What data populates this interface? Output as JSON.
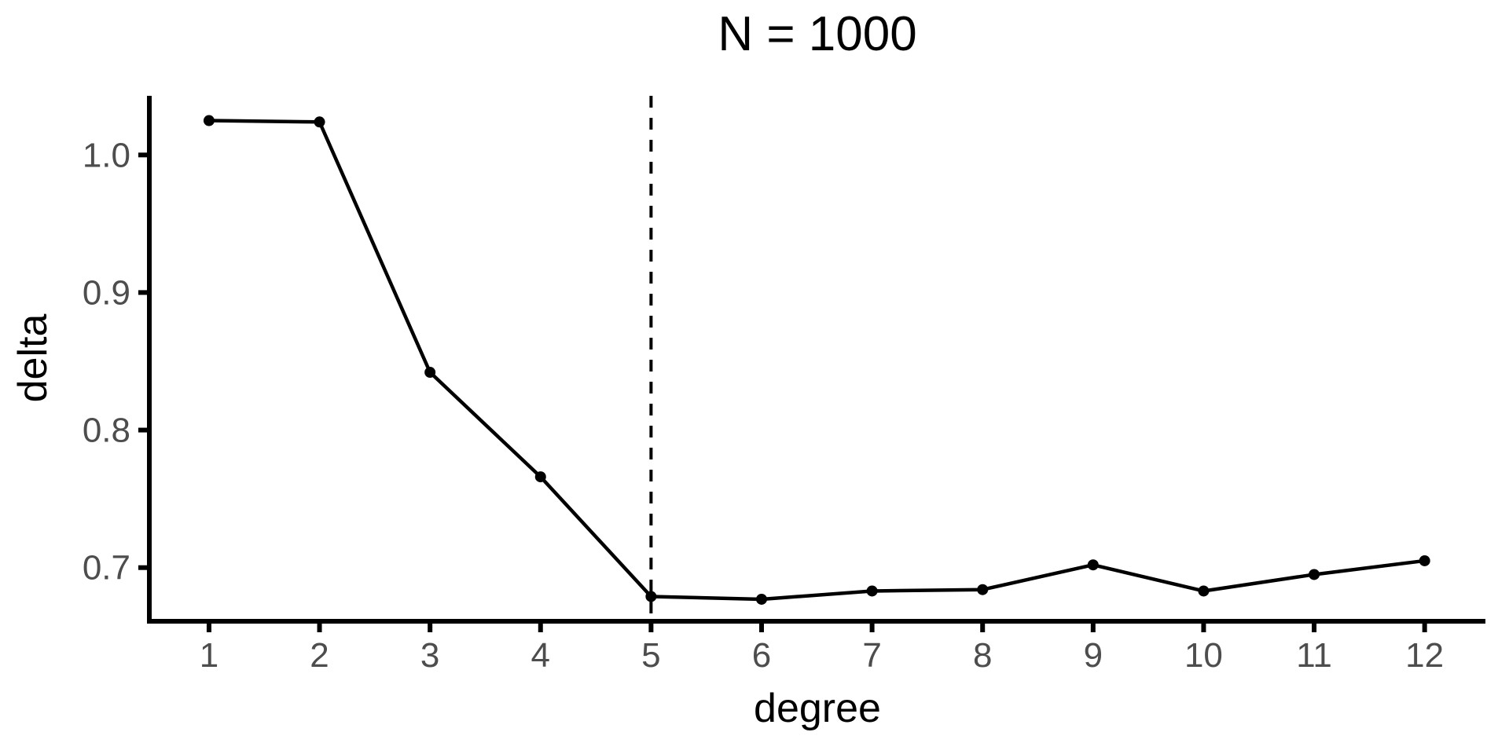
{
  "chart_data": {
    "type": "line",
    "title": "N = 1000",
    "xlabel": "degree",
    "ylabel": "delta",
    "x": [
      1,
      2,
      3,
      4,
      5,
      6,
      7,
      8,
      9,
      10,
      11,
      12
    ],
    "series": [
      {
        "name": "delta",
        "values": [
          1.025,
          1.024,
          0.842,
          0.766,
          0.679,
          0.677,
          0.683,
          0.684,
          0.702,
          0.683,
          0.695,
          0.705
        ]
      }
    ],
    "x_ticks": [
      1,
      2,
      3,
      4,
      5,
      6,
      7,
      8,
      9,
      10,
      11,
      12
    ],
    "y_ticks": [
      0.7,
      0.8,
      0.9,
      1.0
    ],
    "y_tick_labels": [
      "0.7",
      "0.8",
      "0.9",
      "1.0"
    ],
    "xlim": [
      0.46,
      12.55
    ],
    "ylim": [
      0.661,
      1.043
    ],
    "vline": {
      "x": 5,
      "style": "dashed"
    },
    "grid": false,
    "legend": false,
    "colors": {
      "line": "#000000",
      "point": "#000000",
      "axis": "#000000",
      "tick_label": "#4D4D4D",
      "title": "#000000",
      "background": "#FFFFFF"
    }
  }
}
